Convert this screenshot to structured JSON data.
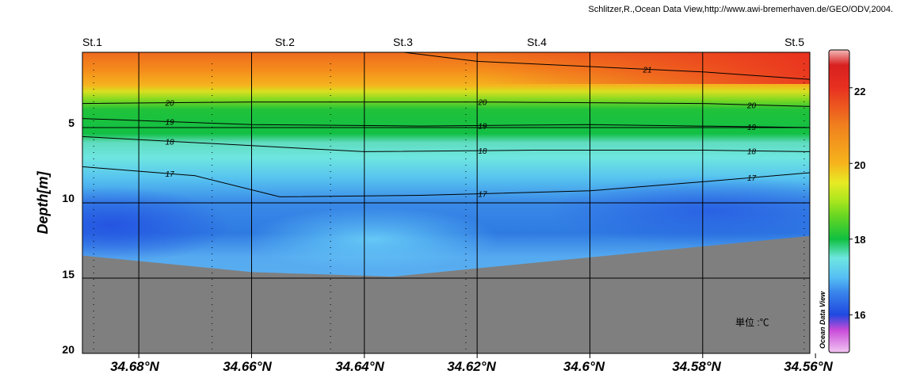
{
  "credit": "Schlitzer,R.,Ocean Data View,http://www.awi-bremerhaven.de/GEO/ODV,2004.",
  "stations": [
    "St.1",
    "St.2",
    "St.3",
    "St.4",
    "St.5"
  ],
  "unit_label": "単位 :℃",
  "watermark": "Ocean Data View",
  "colorbar": {
    "ticks": [
      "16",
      "18",
      "20",
      "22"
    ]
  },
  "chart_data": {
    "type": "heatmap",
    "title": "",
    "xlabel": "",
    "ylabel": "Depth[m]",
    "x_ticks": [
      "34.68°N",
      "34.66°N",
      "34.64°N",
      "34.62°N",
      "34.6°N",
      "34.58°N",
      "34.56°N"
    ],
    "y_ticks": [
      "5",
      "10",
      "15",
      "20"
    ],
    "x_range_lat": [
      34.69,
      34.561
    ],
    "y_range_depth": [
      0,
      20
    ],
    "y_inverted": true,
    "station_latitudes": [
      34.688,
      34.667,
      34.646,
      34.622,
      34.562
    ],
    "colorbar_range": [
      15,
      23
    ],
    "color_scale": [
      {
        "value": 15.0,
        "color": "#f2c6f2"
      },
      {
        "value": 15.6,
        "color": "#c84ad8"
      },
      {
        "value": 16.0,
        "color": "#2048e0"
      },
      {
        "value": 16.6,
        "color": "#3a86ec"
      },
      {
        "value": 17.0,
        "color": "#56c0f4"
      },
      {
        "value": 17.5,
        "color": "#6ee6e0"
      },
      {
        "value": 18.0,
        "color": "#10c040"
      },
      {
        "value": 18.6,
        "color": "#66d622"
      },
      {
        "value": 19.0,
        "color": "#a8e61e"
      },
      {
        "value": 19.5,
        "color": "#e8ea24"
      },
      {
        "value": 20.0,
        "color": "#f6b41c"
      },
      {
        "value": 21.0,
        "color": "#f0801e"
      },
      {
        "value": 22.0,
        "color": "#e83020"
      },
      {
        "value": 22.6,
        "color": "#d82020"
      },
      {
        "value": 23.0,
        "color": "#f4b8b8"
      }
    ],
    "contour_lines": [
      {
        "level": "21",
        "depth": [
          [
            34.633,
            0
          ],
          [
            34.62,
            0.6
          ],
          [
            34.58,
            1.3
          ],
          [
            34.561,
            1.8
          ]
        ]
      },
      {
        "level": "20",
        "depth": [
          [
            34.69,
            3.4
          ],
          [
            34.66,
            3.3
          ],
          [
            34.62,
            3.3
          ],
          [
            34.58,
            3.4
          ],
          [
            34.561,
            3.6
          ]
        ]
      },
      {
        "level": "19",
        "depth": [
          [
            34.69,
            4.4
          ],
          [
            34.66,
            4.8
          ],
          [
            34.63,
            4.9
          ],
          [
            34.6,
            4.8
          ],
          [
            34.561,
            5.0
          ]
        ]
      },
      {
        "level": "18",
        "depth": [
          [
            34.69,
            5.6
          ],
          [
            34.66,
            6.2
          ],
          [
            34.64,
            6.6
          ],
          [
            34.61,
            6.5
          ],
          [
            34.58,
            6.5
          ],
          [
            34.561,
            6.6
          ]
        ]
      },
      {
        "level": "17",
        "depth": [
          [
            34.69,
            7.6
          ],
          [
            34.67,
            8.2
          ],
          [
            34.655,
            9.6
          ],
          [
            34.63,
            9.5
          ],
          [
            34.6,
            9.2
          ],
          [
            34.58,
            8.6
          ],
          [
            34.561,
            8.0
          ]
        ]
      }
    ],
    "seafloor_depth": [
      [
        34.69,
        13.5
      ],
      [
        34.66,
        14.6
      ],
      [
        34.635,
        14.9
      ],
      [
        34.561,
        12.2
      ]
    ]
  }
}
